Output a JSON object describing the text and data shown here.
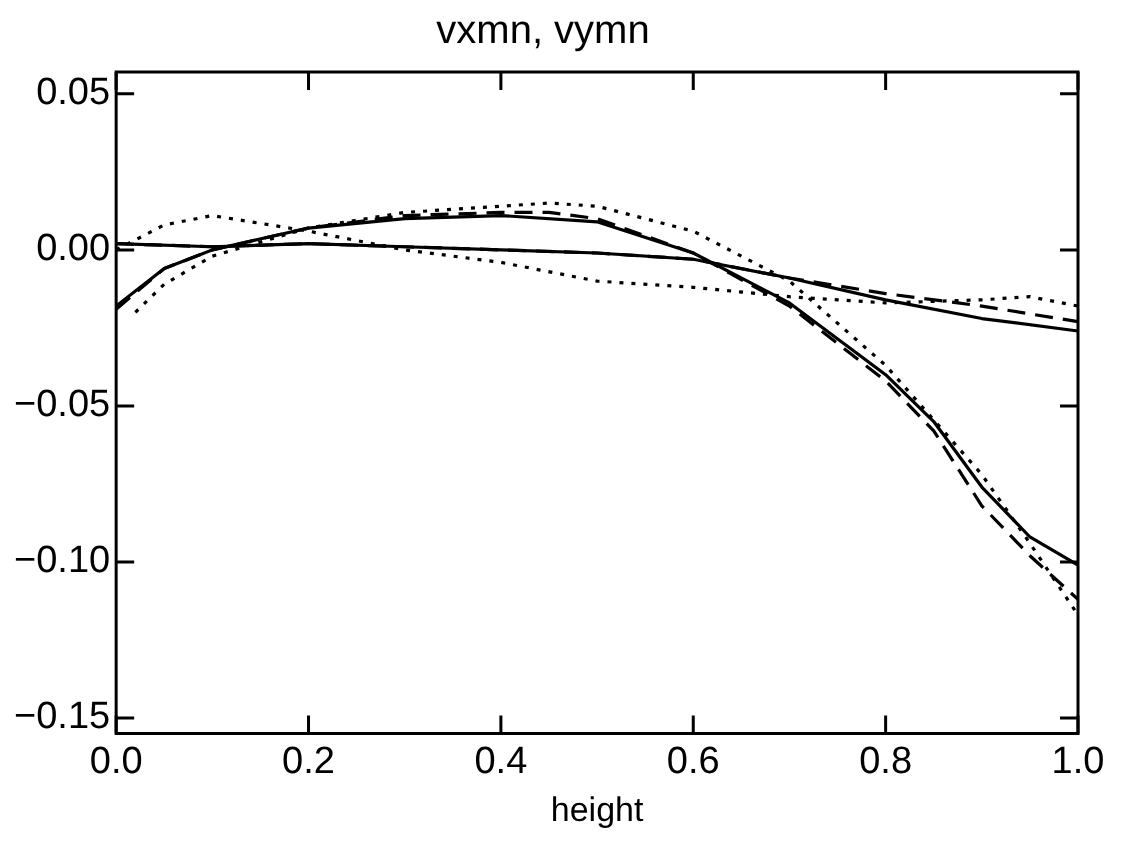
{
  "chart_data": {
    "type": "line",
    "title": "vxmn, vymn",
    "xlabel": "height",
    "xlim": [
      0,
      1
    ],
    "xticks": [
      {
        "value": 0,
        "label": "0.0"
      },
      {
        "value": 0.2,
        "label": "0.2"
      },
      {
        "value": 0.4,
        "label": "0.4"
      },
      {
        "value": 0.6,
        "label": "0.6"
      },
      {
        "value": 0.8,
        "label": "0.8"
      },
      {
        "value": 1,
        "label": "1.0"
      }
    ],
    "ylim": [
      -0.155,
      0.057
    ],
    "yticks": [
      {
        "value": 0.05,
        "label": "0.05"
      },
      {
        "value": 0,
        "label": "0.00"
      },
      {
        "value": -0.05,
        "label": "−0.05"
      },
      {
        "value": -0.1,
        "label": "−0.10"
      },
      {
        "value": -0.15,
        "label": "−0.15"
      }
    ],
    "grid": false,
    "legend": false,
    "marker": "none",
    "series": [
      {
        "color": "#000000",
        "line_style": "solid",
        "x": [
          0,
          0.05,
          0.1,
          0.2,
          0.3,
          0.4,
          0.5,
          0.6,
          0.7,
          0.8,
          0.85,
          0.9,
          0.95,
          1
        ],
        "values": [
          -0.018,
          -0.006,
          0,
          0.007,
          0.01,
          0.011,
          0.009,
          -0.001,
          -0.017,
          -0.04,
          -0.055,
          -0.076,
          -0.092,
          -0.101
        ]
      },
      {
        "color": "#000000",
        "line_style": "dashed",
        "x": [
          0,
          0.05,
          0.1,
          0.2,
          0.3,
          0.4,
          0.45,
          0.5,
          0.6,
          0.7,
          0.8,
          0.85,
          0.9,
          0.95,
          1
        ],
        "values": [
          -0.019,
          -0.006,
          0,
          0.007,
          0.011,
          0.012,
          0.012,
          0.01,
          -0.001,
          -0.018,
          -0.042,
          -0.058,
          -0.082,
          -0.098,
          -0.112
        ]
      },
      {
        "color": "#000000",
        "line_style": "dotted",
        "x": [
          0.02,
          0.05,
          0.1,
          0.2,
          0.3,
          0.4,
          0.45,
          0.5,
          0.6,
          0.7,
          0.8,
          0.9,
          0.95,
          1
        ],
        "values": [
          -0.02,
          -0.011,
          -0.002,
          0.007,
          0.012,
          0.014,
          0.015,
          0.014,
          0.006,
          -0.01,
          -0.037,
          -0.072,
          -0.094,
          -0.117
        ]
      },
      {
        "color": "#000000",
        "line_style": "solid",
        "x": [
          0,
          0.1,
          0.2,
          0.3,
          0.4,
          0.5,
          0.6,
          0.7,
          0.8,
          0.9,
          1
        ],
        "values": [
          0.002,
          0.001,
          0.002,
          0.001,
          0,
          -0.001,
          -0.003,
          -0.009,
          -0.016,
          -0.022,
          -0.026
        ]
      },
      {
        "color": "#000000",
        "line_style": "dashed",
        "x": [
          0,
          0.1,
          0.2,
          0.3,
          0.4,
          0.5,
          0.6,
          0.7,
          0.8,
          0.9,
          1
        ],
        "values": [
          0.002,
          0.001,
          0.002,
          0.001,
          0,
          -0.001,
          -0.003,
          -0.009,
          -0.014,
          -0.018,
          -0.023
        ]
      },
      {
        "color": "#000000",
        "line_style": "dotted",
        "x": [
          0,
          0.05,
          0.1,
          0.2,
          0.3,
          0.4,
          0.5,
          0.6,
          0.7,
          0.8,
          0.9,
          0.95,
          1
        ],
        "values": [
          0,
          0.008,
          0.011,
          0.006,
          0,
          -0.004,
          -0.01,
          -0.012,
          -0.015,
          -0.017,
          -0.016,
          -0.015,
          -0.018
        ]
      }
    ]
  }
}
